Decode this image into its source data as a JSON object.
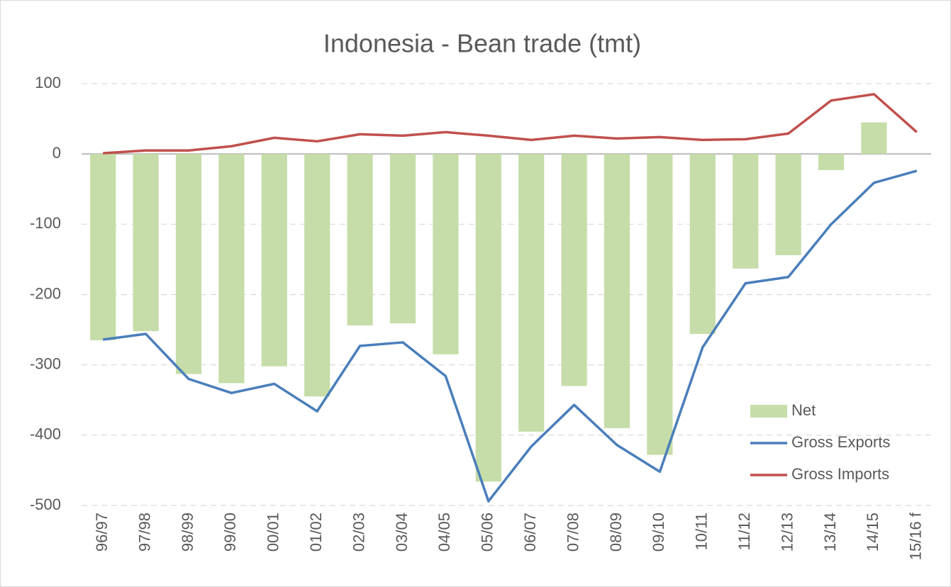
{
  "chart_data": {
    "type": "bar_line",
    "title": "Indonesia - Bean trade (tmt)",
    "categories": [
      "96/97",
      "97/98",
      "98/99",
      "99/00",
      "00/01",
      "01/02",
      "02/03",
      "03/04",
      "04/05",
      "05/06",
      "06/07",
      "07/08",
      "08/09",
      "09/10",
      "10/11",
      "11/12",
      "12/13",
      "13/14",
      "14/15",
      "15/16 f"
    ],
    "series": [
      {
        "name": "Net",
        "type": "bar",
        "color": "#c6dda9",
        "values": [
          -265,
          -252,
          -313,
          -326,
          -302,
          -345,
          -244,
          -241,
          -285,
          -466,
          -395,
          -330,
          -390,
          -428,
          -256,
          -163,
          -144,
          -23,
          45,
          null
        ]
      },
      {
        "name": "Gross Exports",
        "type": "line",
        "color": "#4a7ebb",
        "values": [
          -264,
          -256,
          -320,
          -340,
          -327,
          -366,
          -273,
          -268,
          -316,
          -494,
          -416,
          -357,
          -414,
          -452,
          -275,
          -184,
          -175,
          -100,
          -41,
          -24
        ]
      },
      {
        "name": "Gross Imports",
        "type": "line",
        "color": "#c0504d",
        "values": [
          1,
          5,
          5,
          11,
          23,
          18,
          28,
          26,
          31,
          26,
          20,
          26,
          22,
          24,
          20,
          21,
          29,
          76,
          85,
          31
        ]
      }
    ],
    "ylim": [
      -500,
      100
    ],
    "yticks": [
      -500,
      -400,
      -300,
      -200,
      -100,
      0,
      100
    ],
    "grid": true,
    "legend": "lower right"
  }
}
